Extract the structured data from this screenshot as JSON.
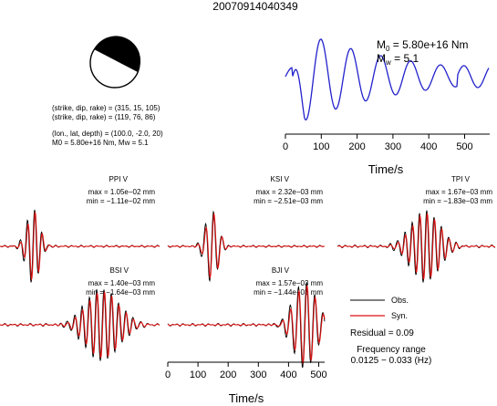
{
  "title": "20070914040349",
  "mechanism": {
    "nodal_plane_1": "(strike, dip, rake) = (315, 15, 105)",
    "nodal_plane_2": "(strike, dip, rake) = (119, 76, 86)",
    "location": "(lon., lat, depth) = (100.0, -2.0, 20)",
    "moment_line": "M0 = 5.80e+16 Nm, Mw = 5.1"
  },
  "stf_plot": {
    "moment_label_main": "M",
    "moment_label_sub": "0",
    "moment_value": " = 5.80e+16 Nm",
    "mw_label_main": "M",
    "mw_label_sub": "w",
    "mw_value": " = 5.1",
    "xlabel": "Time/s",
    "xticks": [
      "0",
      "100",
      "200",
      "300",
      "400",
      "500"
    ]
  },
  "stations": [
    {
      "name": "PPI V",
      "max": "max = 1.05e−02 mm",
      "min": "min = −1.11e−02 mm"
    },
    {
      "name": "KSI V",
      "max": "max = 2.32e−03 mm",
      "min": "min = −2.51e−03 mm"
    },
    {
      "name": "TPI V",
      "max": "max = 1.67e−03 mm",
      "min": "min = −1.83e−03 mm"
    },
    {
      "name": "BSI V",
      "max": "max = 1.40e−03 mm",
      "min": "min = −1.64e−03 mm"
    },
    {
      "name": "BJI V",
      "max": "max = 1.57e−03 mm",
      "min": "min = −1.44e−03 mm"
    }
  ],
  "waveform_axis": {
    "xlabel": "Time/s",
    "xticks": [
      "0",
      "100",
      "200",
      "300",
      "400",
      "500"
    ]
  },
  "legend": {
    "obs": "Obs.",
    "syn": "Syn.",
    "residual": "Residual = 0.09",
    "freq_title": "Frequency range",
    "freq_value": "0.0125 − 0.033 (Hz)"
  },
  "colors": {
    "obs": "#000000",
    "syn": "#dd1111",
    "stf": "#2222cc"
  },
  "chart_data": {
    "type": "line",
    "x": [
      0,
      20,
      40,
      60,
      80,
      100,
      120,
      140,
      160,
      180,
      200,
      220,
      240,
      260,
      280,
      300,
      320,
      340,
      360,
      380,
      400,
      420,
      440,
      460,
      480,
      500
    ],
    "series": [],
    "xlim": [
      0,
      510
    ],
    "grid": false
  }
}
